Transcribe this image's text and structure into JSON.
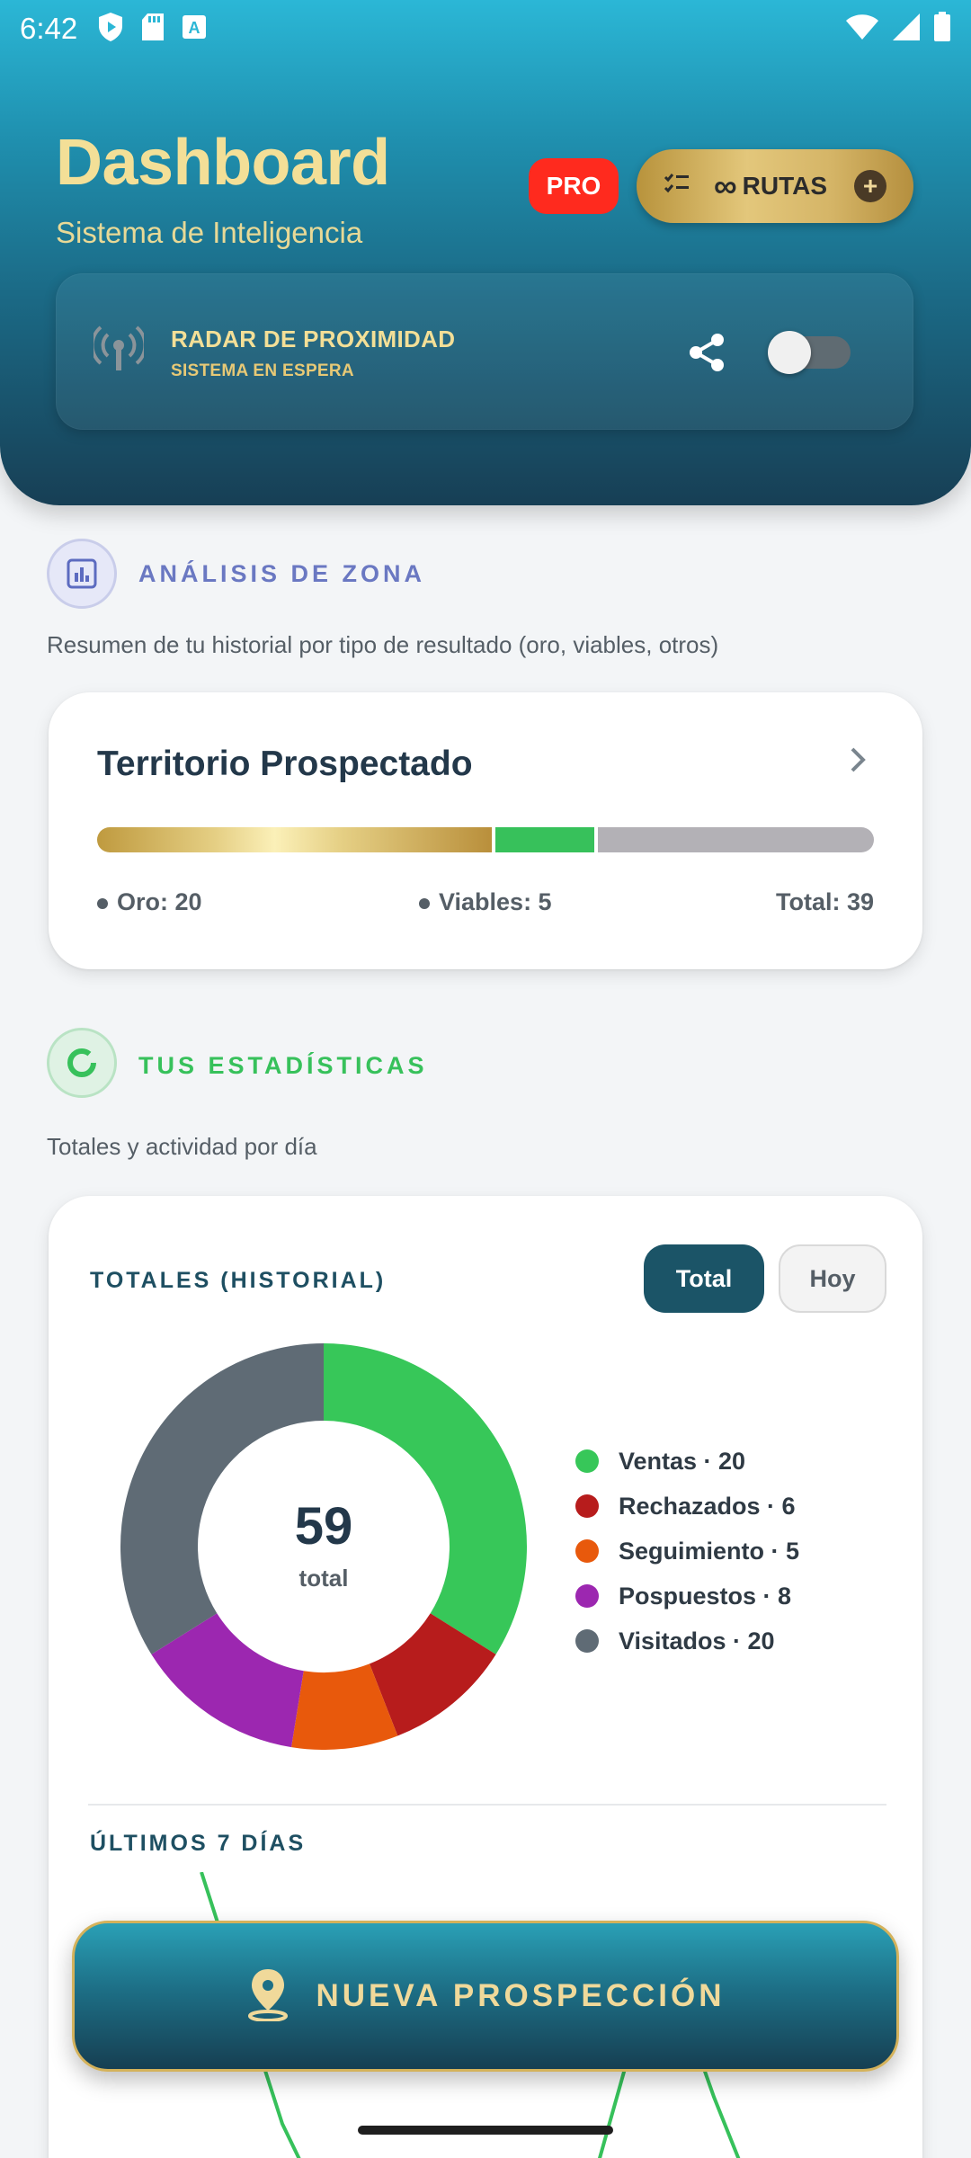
{
  "status_bar": {
    "time": "6:42"
  },
  "header": {
    "title": "Dashboard",
    "subtitle": "Sistema de Inteligencia",
    "pro_badge": "PRO",
    "rutas_button": {
      "infinity": "∞",
      "label": "RUTAS",
      "plus": "+"
    }
  },
  "radar": {
    "title": "RADAR DE PROXIMIDAD",
    "status": "SISTEMA EN ESPERA",
    "toggle_on": false
  },
  "zone_analysis": {
    "title": "ANÁLISIS DE ZONA",
    "description": "Resumen de tu historial por tipo de resultado (oro, viables, otros)"
  },
  "territory": {
    "title": "Territorio Prospectado",
    "oro_label": "Oro: 20",
    "viables_label": "Viables: 5",
    "total_label": "Total: 39",
    "bar": {
      "oro": 20,
      "viables": 5,
      "otros": 14,
      "total": 39
    }
  },
  "stats": {
    "title": "TUS ESTADÍSTICAS",
    "description": "Totales y actividad por día"
  },
  "totals": {
    "title": "TOTALES (HISTORIAL)",
    "btn_total": "Total",
    "btn_hoy": "Hoy",
    "center_number": "59",
    "center_label": "total",
    "legend": [
      {
        "label": "Ventas · 20",
        "color": "#37c759"
      },
      {
        "label": "Rechazados · 6",
        "color": "#b71c1c"
      },
      {
        "label": "Seguimiento · 5",
        "color": "#e8590c"
      },
      {
        "label": "Pospuestos · 8",
        "color": "#9c27b0"
      },
      {
        "label": "Visitados · 20",
        "color": "#5f6b75"
      }
    ],
    "last7_title": "ÚLTIMOS 7 DÍAS"
  },
  "chart_data": {
    "type": "pie",
    "categories": [
      "Ventas",
      "Rechazados",
      "Seguimiento",
      "Pospuestos",
      "Visitados"
    ],
    "values": [
      20,
      6,
      5,
      8,
      20
    ],
    "colors": [
      "#37c759",
      "#b71c1c",
      "#e8590c",
      "#9c27b0",
      "#5f6b75"
    ],
    "total": 59
  },
  "fab": {
    "label": "NUEVA PROSPECCIÓN"
  },
  "icons": [
    "shield-play-icon",
    "sd-card-icon",
    "font-a-icon",
    "wifi-icon",
    "signal-icon",
    "battery-icon",
    "list-check-icon",
    "radar-antenna-icon",
    "share-icon",
    "bar-chart-icon",
    "donut-icon",
    "chevron-right-icon",
    "map-pin-icon"
  ]
}
